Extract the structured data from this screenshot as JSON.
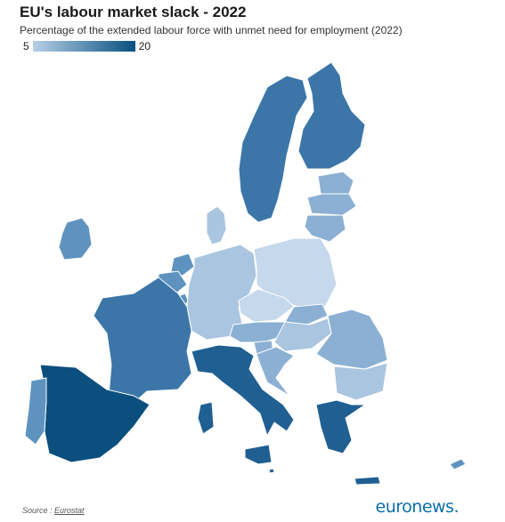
{
  "title": "EU's labour market slack - 2022",
  "subtitle": "Percentage of the extended labour force with unmet need for employment (2022)",
  "legend": {
    "min_label": "5",
    "max_label": "20",
    "color_low": "#b6cfe6",
    "color_high": "#08507f"
  },
  "source": {
    "prefix": "Source : ",
    "link_text": "Eurostat"
  },
  "brand": "euronews.",
  "map_colors": {
    "very_light": "#c5d8ec",
    "light": "#a9c5e0",
    "light_mid": "#8bb0d3",
    "mid": "#5e93bf",
    "mid_dark": "#3c76a8",
    "dark": "#1f5f92",
    "darkest": "#0b4f7e"
  }
}
